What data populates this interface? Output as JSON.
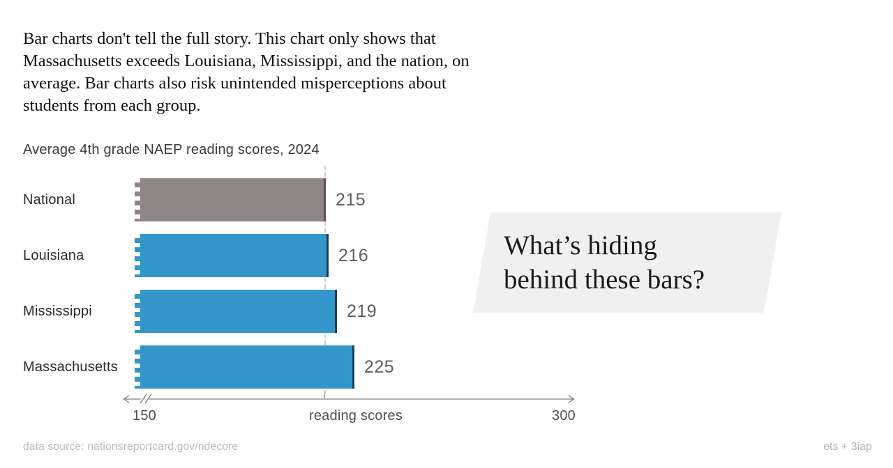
{
  "header": {
    "lines": [
      "Bar charts don't tell the full story. This chart only shows that",
      "Massachusetts exceeds Louisiana, Mississippi, and the nation, on",
      "average. Bar charts also risk unintended misperceptions about",
      "students from each group."
    ]
  },
  "chart_data": {
    "type": "bar",
    "orientation": "horizontal",
    "title": "Average 4th grade NAEP reading scores, 2024",
    "categories": [
      "National",
      "Louisiana",
      "Mississippi",
      "Massachusetts"
    ],
    "values": [
      215,
      216,
      219,
      225
    ],
    "xlabel": "reading scores",
    "xlim": [
      150,
      300
    ],
    "x_tick_labels": [
      "150",
      "300"
    ],
    "reference_line_value": 215,
    "axis_break_at_min": true,
    "legend": "none",
    "grid": "off",
    "colors": {
      "national_bar": "#908687",
      "national_edge": "#5a5355",
      "state_bar": "#3397c9",
      "state_edge": "#1c3d59",
      "reference_line": "#cccccc",
      "axis": "#7f7f7f",
      "callout_bg": "#f0f0f0"
    }
  },
  "callout": {
    "lines": [
      "What’s hiding",
      "behind these bars?"
    ]
  },
  "footer": {
    "left": "data source: nationsreportcard.gov/ndecore",
    "right": "ets + 3iap"
  }
}
